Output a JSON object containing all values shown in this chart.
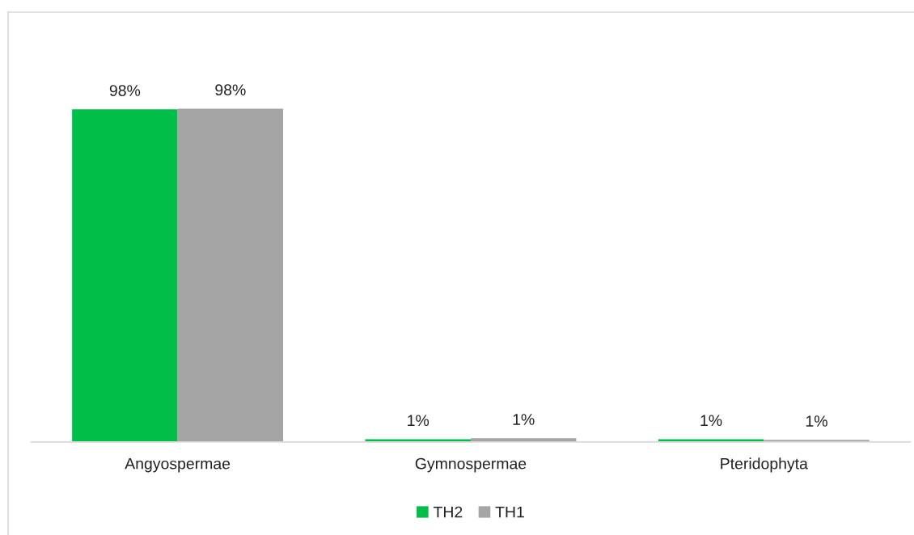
{
  "chart_data": {
    "type": "bar",
    "categories": [
      "Angyospermae",
      "Gymnospermae",
      "Pteridophyta"
    ],
    "series": [
      {
        "name": "TH2",
        "color": "#00bf48",
        "values": [
          98,
          0.8,
          0.8
        ],
        "value_labels": [
          "98%",
          "1%",
          "1%"
        ]
      },
      {
        "name": "TH1",
        "color": "#a5a5a5",
        "values": [
          98.2,
          1.1,
          0.6
        ],
        "value_labels": [
          "98%",
          "1%",
          "1%"
        ]
      }
    ],
    "legend": "bottom",
    "grid": false,
    "tick_labels": "x"
  }
}
